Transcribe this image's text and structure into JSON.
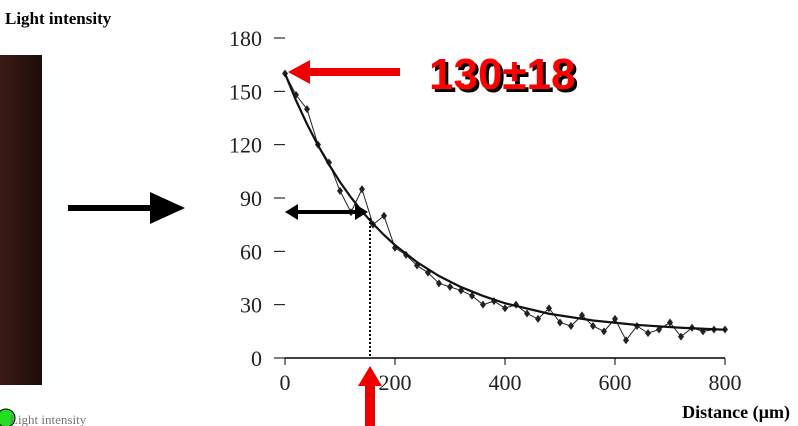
{
  "chart_data": {
    "type": "line",
    "y_label": "Light intensity",
    "x_label": "Distance (µm)",
    "annotation": "130±18",
    "caption": "Light intensity",
    "xlim": [
      0,
      800
    ],
    "xticks": [
      0,
      200,
      400,
      600,
      800
    ],
    "ylim": [
      0,
      180
    ],
    "yticks": [
      0,
      30,
      60,
      90,
      120,
      150,
      180
    ],
    "series": [
      {
        "color": "#222222",
        "marker": "diamond",
        "x": [
          0,
          20,
          40,
          60,
          80,
          100,
          120,
          140,
          160,
          180,
          200,
          220,
          240,
          260,
          280,
          300,
          320,
          340,
          360,
          380,
          400,
          420,
          440,
          460,
          480,
          500,
          520,
          540,
          560,
          580,
          600,
          620,
          640,
          660,
          680,
          700,
          720,
          740,
          760,
          780,
          800
        ],
        "values": [
          160,
          148,
          140,
          120,
          110,
          94,
          82,
          95,
          75,
          80,
          62,
          58,
          52,
          48,
          42,
          40,
          38,
          35,
          30,
          32,
          28,
          30,
          25,
          22,
          28,
          20,
          18,
          24,
          18,
          15,
          22,
          10,
          18,
          14,
          16,
          20,
          12,
          17,
          15,
          16,
          16
        ]
      },
      {
        "color": "#111111",
        "marker": "none",
        "x": [
          0,
          20,
          40,
          60,
          80,
          100,
          120,
          140,
          160,
          180,
          200,
          240,
          280,
          320,
          360,
          400,
          480,
          560,
          640,
          720,
          800
        ],
        "values": [
          160,
          144.9,
          131.6,
          119.6,
          108.8,
          99,
          90.3,
          82.5,
          75.5,
          69.2,
          63.5,
          53.9,
          46.1,
          39.9,
          34.9,
          30.8,
          24.9,
          21.1,
          18.6,
          17,
          15.9
        ]
      }
    ]
  }
}
